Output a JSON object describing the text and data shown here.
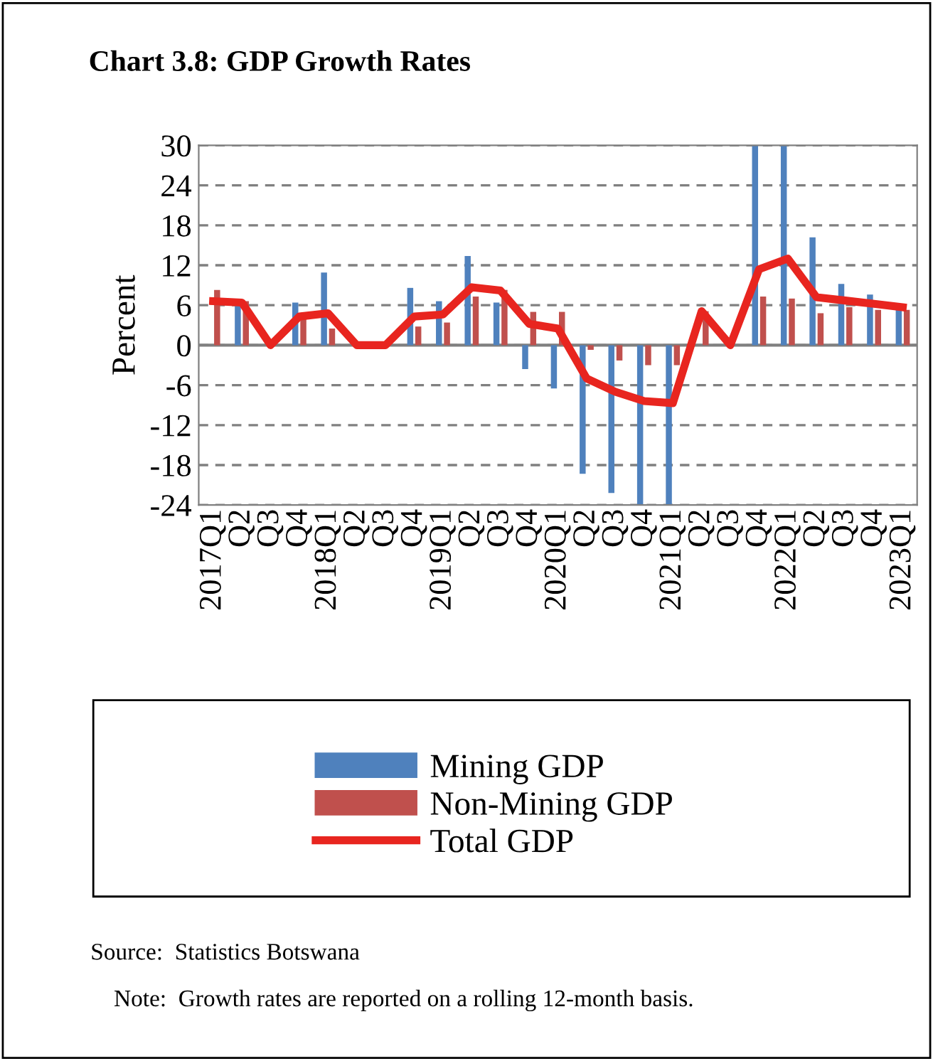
{
  "chart_data": {
    "type": "bar",
    "title": "Chart 3.8: GDP Growth Rates",
    "ylabel": "Percent",
    "categories": [
      "2017Q1",
      "Q2",
      "Q3",
      "Q4",
      "2018Q1",
      "Q2",
      "Q3",
      "Q4",
      "2019Q1",
      "Q2",
      "Q3",
      "Q4",
      "2020Q1",
      "Q2",
      "Q3",
      "Q4",
      "2021Q1",
      "Q2",
      "Q3",
      "Q4",
      "2022Q1",
      "Q2",
      "Q3",
      "Q4",
      "2023Q1"
    ],
    "series": [
      {
        "name": "Mining GDP",
        "color": "#4f81bd",
        "values": [
          0,
          5.9,
          0,
          6.4,
          10.9,
          0,
          0,
          8.6,
          6.6,
          13.4,
          6.4,
          -3.6,
          -6.5,
          -19.3,
          -22.2,
          -24,
          -24,
          0,
          0,
          30,
          30,
          16.2,
          9.2,
          7.6,
          5.7
        ]
      },
      {
        "name": "Non-Mining GDP",
        "color": "#c0504d",
        "values": [
          8.3,
          6.6,
          0,
          3.9,
          2.5,
          0,
          0,
          2.8,
          3.4,
          7.3,
          8.3,
          5.0,
          5.0,
          -0.7,
          -2.3,
          -3.0,
          -3.0,
          5.1,
          0,
          7.3,
          7.0,
          4.8,
          5.7,
          5.3,
          5.3
        ]
      },
      {
        "name": "Total GDP",
        "type": "line",
        "color": "#e8251f",
        "values": [
          6.6,
          6.4,
          0,
          4.3,
          4.8,
          0,
          0,
          4.3,
          4.6,
          8.7,
          8.2,
          3.2,
          2.5,
          -5.0,
          -7.0,
          -8.4,
          -8.7,
          5.1,
          0,
          11.4,
          13.0,
          7.2,
          6.7,
          6.2,
          5.7
        ]
      }
    ],
    "ylim": [
      -24,
      30
    ],
    "yticks": [
      -24,
      -18,
      -12,
      -6,
      0,
      6,
      12,
      18,
      24,
      30
    ],
    "grid": "y",
    "legend": "bottom",
    "marker": "none",
    "line_style": "solid",
    "annotations": [
      "Source:  Statistics Botswana",
      "Note:  Growth rates are reported on a rolling 12-month basis."
    ]
  }
}
